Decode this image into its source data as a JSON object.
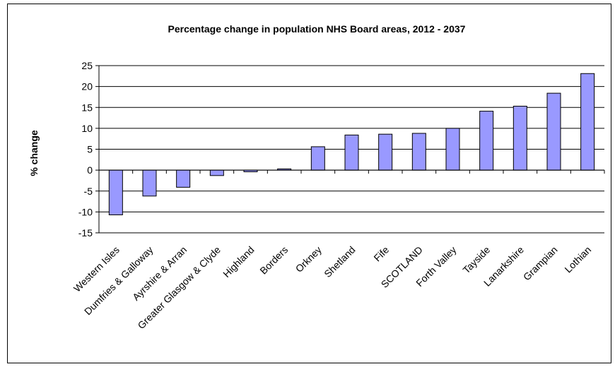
{
  "chart_data": {
    "type": "bar",
    "title": "Percentage change in population NHS Board areas, 2012 - 2037",
    "xlabel": "",
    "ylabel": "% change",
    "ylim": [
      -15,
      25
    ],
    "yticks": [
      25,
      20,
      15,
      10,
      5,
      0,
      -5,
      -10,
      -15
    ],
    "grid": true,
    "legend": "none",
    "bar_color": "#9999ff",
    "categories": [
      "Western Isles",
      "Dumfries & Galloway",
      "Ayrshire & Arran",
      "Greater Glasgow & Clyde",
      "Highland",
      "Borders",
      "Orkney",
      "Shetland",
      "Fife",
      "SCOTLAND",
      "Forth Valley",
      "Tayside",
      "Lanarkshire",
      "Grampian",
      "Lothian"
    ],
    "values": [
      -10.7,
      -6.2,
      -4.1,
      -1.3,
      -0.4,
      0.3,
      5.6,
      8.4,
      8.6,
      8.8,
      10.0,
      14.1,
      15.3,
      18.4,
      23.1
    ]
  }
}
